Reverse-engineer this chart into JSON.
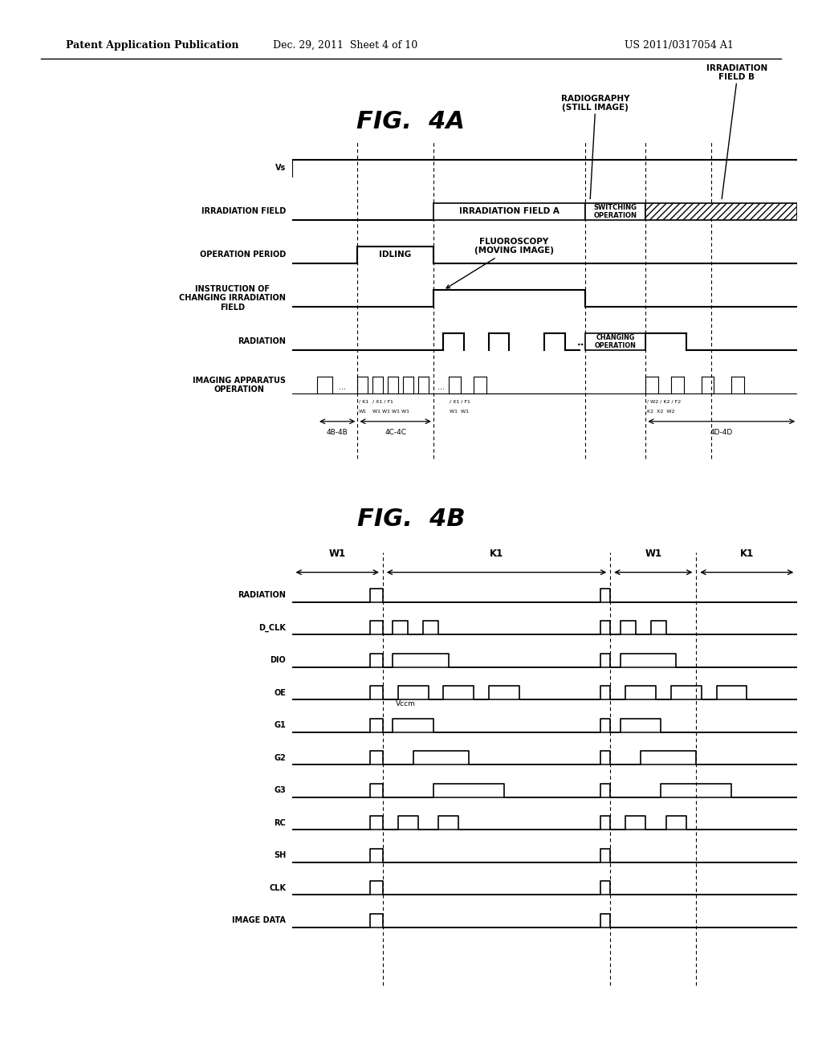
{
  "bg_color": "#ffffff",
  "title_4A": "FIG.  4A",
  "title_4B": "FIG.  4B",
  "header_left": "Patent Application Publication",
  "header_mid": "Dec. 29, 2011  Sheet 4 of 10",
  "header_right": "US 2011/0317054 A1",
  "fig4A": {
    "row_labels_top_to_bottom": [
      "Vs",
      "IRRADIATION FIELD",
      "OPERATION PERIOD",
      "INSTRUCTION OF\nCHANGING IRRADIATION\nFIELD",
      "RADIATION",
      "IMAGING APPARATUS\nOPERATION"
    ],
    "annotations": {
      "radiography": "RADIOGRAPHY\n(STILL IMAGE)",
      "irrad_field_b": "IRRADIATION\nFIELD B",
      "irrad_field_a": "IRRADIATION FIELD A",
      "switching": "SWITCHING\nOPERATION",
      "idling": "IDLING",
      "fluoroscopy": "FLUOROSCOPY\n(MOVING IMAGE)",
      "changing": "CHANGING\nOPERATION",
      "4B_4B": "4B-4B",
      "4C_4C": "4C-4C",
      "4D_4D": "4D-4D"
    }
  },
  "fig4B": {
    "row_labels_top_to_bottom": [
      "RADIATION",
      "D_CLK",
      "DIO",
      "OE",
      "G1",
      "G2",
      "G3",
      "RC",
      "SH",
      "CLK",
      "IMAGE DATA"
    ],
    "W1_label": "W1",
    "K1_label": "K1",
    "Vccm_label": "Vccm"
  }
}
